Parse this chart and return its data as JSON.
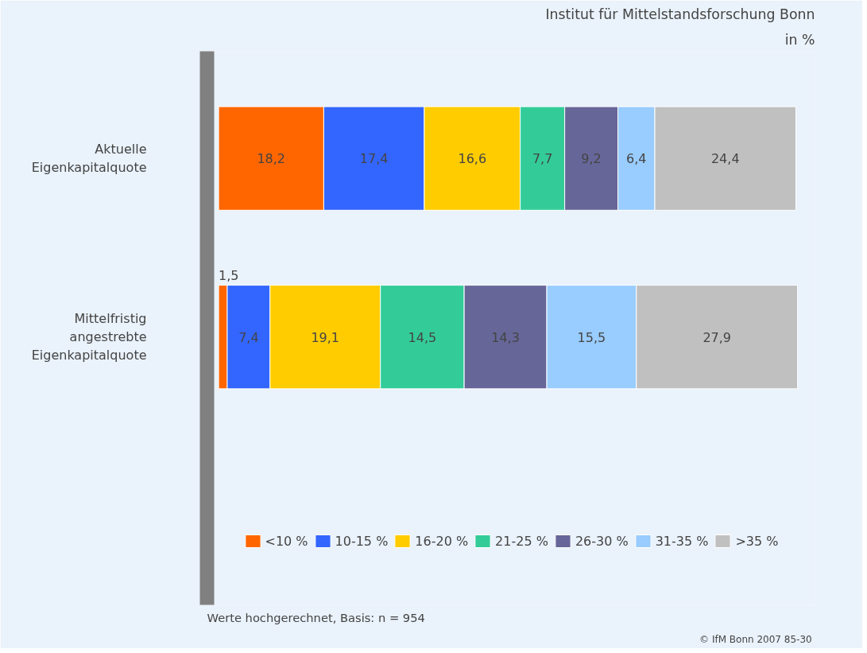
{
  "chart_data": {
    "type": "bar",
    "orientation": "horizontal",
    "stacked": true,
    "title": "Institut für Mittelstandsforschung Bonn",
    "subtitle": "in %",
    "categories": [
      "Aktuelle\nEigenkapitalquote",
      "Mittelfristig\nangestrebte\nEigenkapitalquote"
    ],
    "series": [
      {
        "name": "<10 %",
        "color": "#ff6600",
        "values": [
          18.2,
          1.5
        ],
        "value_labels": [
          "18,2",
          "1,5"
        ]
      },
      {
        "name": "10-15 %",
        "color": "#3366ff",
        "values": [
          17.4,
          7.4
        ],
        "value_labels": [
          "17,4",
          "7,4"
        ]
      },
      {
        "name": "16-20 %",
        "color": "#ffcc00",
        "values": [
          16.6,
          19.1
        ],
        "value_labels": [
          "16,6",
          "19,1"
        ]
      },
      {
        "name": "21-25 %",
        "color": "#33cc99",
        "values": [
          7.7,
          14.5
        ],
        "value_labels": [
          "7,7",
          "14,5"
        ]
      },
      {
        "name": "26-30 %",
        "color": "#666699",
        "values": [
          9.2,
          14.3
        ],
        "value_labels": [
          "9,2",
          "14,3"
        ]
      },
      {
        "name": "31-35 %",
        "color": "#99ccff",
        "values": [
          6.4,
          15.5
        ],
        "value_labels": [
          "6,4",
          "15,5"
        ]
      },
      {
        "name": ">35 %",
        "color": "#c0c0c0",
        "values": [
          24.4,
          27.9
        ],
        "value_labels": [
          "24,4",
          "27,9"
        ]
      }
    ],
    "legend": "bottom",
    "grid": false,
    "annotations": [
      "Werte hochgerechnet, Basis: n = 954",
      "© IfM Bonn 2007  85-30"
    ]
  }
}
